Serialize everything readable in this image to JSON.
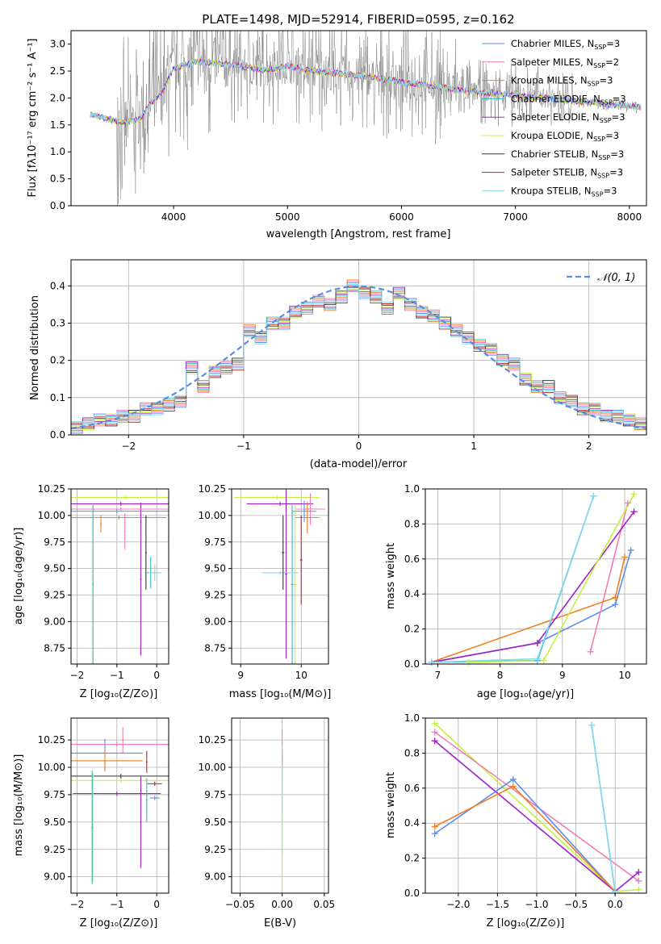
{
  "colors": {
    "chabrier_miles": "#5b8def",
    "salpeter_miles": "#f07db8",
    "kroupa_miles": "#f07f22",
    "chabrier_elodie": "#2db6c4",
    "salpeter_elodie": "#a020c8",
    "kroupa_elodie": "#c4f040",
    "chabrier_stelib": "#333333",
    "salpeter_stelib": "#c81e1e",
    "kroupa_stelib": "#8ad8f0",
    "data_gray": "#808080",
    "normal_curve": "#5b8dd8",
    "grid": "#b0b0b0"
  },
  "chart_data": [
    {
      "id": "spectrum",
      "type": "line",
      "title": "PLATE=1498, MJD=52914, FIBERID=0595, z=0.162",
      "xlabel": "wavelength [Angstrom, rest frame]",
      "ylabel": "Flux [fλ10⁻¹⁷ erg cm⁻² s⁻¹ A⁻¹]",
      "xlim": [
        3100,
        8150
      ],
      "ylim": [
        0,
        3.25
      ],
      "xticks": [
        "4000",
        "5000",
        "6000",
        "7000",
        "8000"
      ],
      "yticks": [
        "0.0",
        "0.5",
        "1.0",
        "1.5",
        "2.0",
        "2.5",
        "3.0"
      ],
      "grid": false,
      "legend_position": "top-right",
      "legend": [
        {
          "label": "Chabrier MILES, N",
          "sub": "SSP",
          "eq": "=3",
          "color_key": "chabrier_miles"
        },
        {
          "label": "Salpeter MILES, N",
          "sub": "SSP",
          "eq": "=2",
          "color_key": "salpeter_miles"
        },
        {
          "label": "Kroupa MILES, N",
          "sub": "SSP",
          "eq": "=3",
          "color_key": "kroupa_miles"
        },
        {
          "label": "Chabrier ELODIE, N",
          "sub": "SSP",
          "eq": "=3",
          "color_key": "chabrier_elodie"
        },
        {
          "label": "Salpeter ELODIE, N",
          "sub": "SSP",
          "eq": "=3",
          "color_key": "salpeter_elodie"
        },
        {
          "label": "Kroupa ELODIE, N",
          "sub": "SSP",
          "eq": "=3",
          "color_key": "kroupa_elodie"
        },
        {
          "label": "Chabrier STELIB, N",
          "sub": "SSP",
          "eq": "=3",
          "color_key": "chabrier_stelib"
        },
        {
          "label": "Salpeter STELIB, N",
          "sub": "SSP",
          "eq": "=3",
          "color_key": "salpeter_stelib"
        },
        {
          "label": "Kroupa STELIB, N",
          "sub": "SSP",
          "eq": "=3",
          "color_key": "kroupa_stelib"
        }
      ],
      "continuum": [
        [
          3270,
          1.7
        ],
        [
          3400,
          1.62
        ],
        [
          3550,
          1.55
        ],
        [
          3700,
          1.6
        ],
        [
          3800,
          1.9
        ],
        [
          3900,
          2.12
        ],
        [
          4000,
          2.55
        ],
        [
          4200,
          2.68
        ],
        [
          4500,
          2.62
        ],
        [
          4800,
          2.52
        ],
        [
          5000,
          2.6
        ],
        [
          5200,
          2.5
        ],
        [
          5500,
          2.45
        ],
        [
          6000,
          2.3
        ],
        [
          6500,
          2.15
        ],
        [
          7000,
          2.05
        ],
        [
          7500,
          1.95
        ],
        [
          8000,
          1.85
        ],
        [
          8100,
          1.83
        ]
      ]
    },
    {
      "id": "residuals",
      "type": "line",
      "xlabel": "(data-model)/error",
      "ylabel": "Normed distribution",
      "xlim": [
        -2.5,
        2.5
      ],
      "ylim": [
        0,
        0.47
      ],
      "xticks": [
        "−2",
        "−1",
        "0",
        "1",
        "2"
      ],
      "yticks": [
        "0.0",
        "0.1",
        "0.2",
        "0.3",
        "0.4"
      ],
      "grid": true,
      "legend": [
        {
          "label": "𝒩(0, 1)",
          "color_key": "normal_curve"
        }
      ],
      "legend_position": "top-right",
      "hist_x": [
        -2.5,
        -2.4,
        -2.3,
        -2.2,
        -2.1,
        -2.0,
        -1.9,
        -1.8,
        -1.7,
        -1.6,
        -1.5,
        -1.4,
        -1.3,
        -1.2,
        -1.1,
        -1.0,
        -0.9,
        -0.8,
        -0.7,
        -0.6,
        -0.5,
        -0.4,
        -0.3,
        -0.2,
        -0.1,
        0.0,
        0.1,
        0.2,
        0.3,
        0.4,
        0.5,
        0.6,
        0.7,
        0.8,
        0.9,
        1.0,
        1.1,
        1.2,
        1.3,
        1.4,
        1.5,
        1.6,
        1.7,
        1.8,
        1.9,
        2.0,
        2.1,
        2.2,
        2.3,
        2.4
      ],
      "hist_density": [
        0.02,
        0.03,
        0.04,
        0.04,
        0.05,
        0.05,
        0.07,
        0.07,
        0.08,
        0.09,
        0.18,
        0.13,
        0.17,
        0.18,
        0.19,
        0.28,
        0.26,
        0.3,
        0.3,
        0.33,
        0.34,
        0.36,
        0.35,
        0.37,
        0.4,
        0.38,
        0.37,
        0.34,
        0.38,
        0.35,
        0.33,
        0.32,
        0.3,
        0.28,
        0.26,
        0.24,
        0.23,
        0.2,
        0.19,
        0.15,
        0.13,
        0.13,
        0.1,
        0.09,
        0.07,
        0.07,
        0.05,
        0.05,
        0.04,
        0.03
      ],
      "normal_curve": {
        "mu": 0,
        "sigma": 1,
        "style": "dashed"
      }
    },
    {
      "id": "age_vs_Z",
      "type": "scatter",
      "xlabel": "Z [log₁₀(Z/Z⊙)]",
      "ylabel": "age  [log₁₀(age/yr)]",
      "xlim": [
        -2.15,
        0.3
      ],
      "ylim": [
        8.6,
        10.25
      ],
      "xticks": [
        "−2",
        "−1",
        "0"
      ],
      "yticks": [
        "8.75",
        "9.00",
        "9.25",
        "9.50",
        "9.75",
        "10.00",
        "10.25"
      ],
      "grid": true,
      "points": [
        {
          "c": "kroupa_elodie",
          "x": -0.8,
          "xe": 1.7,
          "y": 10.17,
          "ye": 0.02
        },
        {
          "c": "salpeter_elodie",
          "x": -0.9,
          "xe": 1.6,
          "y": 10.11,
          "ye": 0.02
        },
        {
          "c": "salpeter_elodie",
          "x": -0.4,
          "xe": 0.02,
          "y": 9.4,
          "ye": 0.72
        },
        {
          "c": "salpeter_miles",
          "x": -0.9,
          "xe": 1.5,
          "y": 10.06,
          "ye": 0.02
        },
        {
          "c": "chabrier_miles",
          "x": -1.0,
          "xe": 1.3,
          "y": 10.04,
          "ye": 0.02
        },
        {
          "c": "kroupa_miles",
          "x": -0.95,
          "xe": 1.2,
          "y": 9.98,
          "ye": 0.02
        },
        {
          "c": "kroupa_miles",
          "x": -1.4,
          "xe": 0.02,
          "y": 9.92,
          "ye": 0.08
        },
        {
          "c": "salpeter_miles",
          "x": -0.8,
          "xe": 0.02,
          "y": 9.85,
          "ye": 0.17
        },
        {
          "c": "kroupa_elodie",
          "x": -1.6,
          "xe": 0.02,
          "y": 9.35,
          "ye": 0.75
        },
        {
          "c": "chabrier_elodie",
          "x": -1.6,
          "xe": 0.02,
          "y": 9.35,
          "ye": 0.75
        },
        {
          "c": "chabrier_stelib",
          "x": -0.27,
          "xe": 0.02,
          "y": 9.65,
          "ye": 0.35
        },
        {
          "c": "chabrier_elodie",
          "x": -0.15,
          "xe": 0.15,
          "y": 9.46,
          "ye": 0.15
        },
        {
          "c": "kroupa_stelib",
          "x": -0.05,
          "xe": 0.17,
          "y": 9.46,
          "ye": 0.08
        }
      ]
    },
    {
      "id": "age_vs_mass",
      "type": "scatter",
      "xlabel": "mass [log₁₀(M/M⊙)]",
      "ylabel": "",
      "xlim": [
        8.85,
        10.45
      ],
      "ylim": [
        8.6,
        10.25
      ],
      "xticks": [
        "9",
        "10"
      ],
      "yticks": [
        "8.75",
        "9.00",
        "9.25",
        "9.50",
        "9.75",
        "10.00",
        "10.25"
      ],
      "grid": true,
      "points": [
        {
          "c": "kroupa_elodie",
          "x": 9.6,
          "xe": 0.7,
          "y": 10.17,
          "ye": 0.02
        },
        {
          "c": "salpeter_elodie",
          "x": 9.65,
          "xe": 0.55,
          "y": 10.11,
          "ye": 0.02
        },
        {
          "c": "salpeter_miles",
          "x": 10.15,
          "xe": 0.25,
          "y": 10.06,
          "ye": 0.15
        },
        {
          "c": "chabrier_miles",
          "x": 10.05,
          "xe": 0.2,
          "y": 10.04,
          "ye": 0.1
        },
        {
          "c": "kroupa_miles",
          "x": 10.1,
          "xe": 0.2,
          "y": 9.98,
          "ye": 0.15
        },
        {
          "c": "salpeter_elodie",
          "x": 9.75,
          "xe": 0.02,
          "y": 9.45,
          "ye": 0.8
        },
        {
          "c": "kroupa_elodie",
          "x": 9.9,
          "xe": 0.02,
          "y": 9.35,
          "ye": 0.75
        },
        {
          "c": "chabrier_elodie",
          "x": 9.85,
          "xe": 0.02,
          "y": 9.35,
          "ye": 0.75
        },
        {
          "c": "kroupa_stelib",
          "x": 9.65,
          "xe": 0.3,
          "y": 9.46,
          "ye": 0.02
        },
        {
          "c": "chabrier_stelib",
          "x": 9.7,
          "xe": 0.02,
          "y": 9.65,
          "ye": 0.35
        },
        {
          "c": "salpeter_stelib",
          "x": 10.0,
          "xe": 0.02,
          "y": 9.58,
          "ye": 0.42
        }
      ]
    },
    {
      "id": "weight_vs_age",
      "type": "line",
      "xlabel": "age  [log₁₀(age/yr)]",
      "ylabel": "mass weight",
      "xlim": [
        6.8,
        10.35
      ],
      "ylim": [
        0,
        1.0
      ],
      "xticks": [
        "7",
        "8",
        "9",
        "10"
      ],
      "yticks": [
        "0.0",
        "0.2",
        "0.4",
        "0.6",
        "0.8",
        "1.0"
      ],
      "grid": true,
      "series": [
        {
          "c": "chabrier_miles",
          "pts": [
            [
              6.9,
              0.01
            ],
            [
              8.6,
              0.12
            ],
            [
              9.85,
              0.34
            ],
            [
              10.1,
              0.65
            ]
          ]
        },
        {
          "c": "salpeter_miles",
          "pts": [
            [
              9.45,
              0.07
            ],
            [
              10.05,
              0.92
            ]
          ]
        },
        {
          "c": "kroupa_miles",
          "pts": [
            [
              6.9,
              0.01
            ],
            [
              9.85,
              0.38
            ],
            [
              10.0,
              0.61
            ]
          ]
        },
        {
          "c": "chabrier_elodie",
          "pts": [
            [
              6.9,
              0.01
            ],
            [
              8.6,
              0.02
            ],
            [
              9.5,
              0.96
            ]
          ]
        },
        {
          "c": "salpeter_elodie",
          "pts": [
            [
              6.9,
              0.01
            ],
            [
              8.6,
              0.12
            ],
            [
              10.15,
              0.87
            ]
          ]
        },
        {
          "c": "kroupa_elodie",
          "pts": [
            [
              7.5,
              0.01
            ],
            [
              8.7,
              0.02
            ],
            [
              10.15,
              0.97
            ]
          ]
        },
        {
          "c": "kroupa_stelib",
          "pts": [
            [
              6.9,
              0.01
            ],
            [
              8.6,
              0.03
            ],
            [
              9.5,
              0.96
            ]
          ]
        }
      ]
    },
    {
      "id": "mass_vs_Z",
      "type": "scatter",
      "xlabel": "Z [log₁₀(Z/Z⊙)]",
      "ylabel": "mass [log₁₀(M/M⊙)]",
      "xlim": [
        -2.15,
        0.3
      ],
      "ylim": [
        8.85,
        10.45
      ],
      "xticks": [
        "−2",
        "−1",
        "0"
      ],
      "yticks": [
        "9.00",
        "9.25",
        "9.50",
        "9.75",
        "10.00",
        "10.25"
      ],
      "grid": true,
      "points": [
        {
          "c": "salpeter_miles",
          "x": -1.0,
          "xe": 1.3,
          "y": 10.21,
          "ye": 0.02
        },
        {
          "c": "salpeter_miles",
          "x": -0.85,
          "xe": 0.02,
          "y": 10.25,
          "ye": 0.12
        },
        {
          "c": "chabrier_miles",
          "x": -1.3,
          "xe": 0.95,
          "y": 10.13,
          "ye": 0.13
        },
        {
          "c": "kroupa_miles",
          "x": -1.3,
          "xe": 0.95,
          "y": 10.06,
          "ye": 0.1
        },
        {
          "c": "kroupa_elodie",
          "x": -0.9,
          "xe": 1.25,
          "y": 9.88,
          "ye": 0.02
        },
        {
          "c": "chabrier_stelib",
          "x": -0.9,
          "xe": 1.35,
          "y": 9.92,
          "ye": 0.02
        },
        {
          "c": "salpeter_elodie",
          "x": -1.0,
          "xe": 1.1,
          "y": 9.76,
          "ye": 0.02
        },
        {
          "c": "salpeter_elodie",
          "x": -0.4,
          "xe": 0.02,
          "y": 9.5,
          "ye": 0.42
        },
        {
          "c": "kroupa_elodie",
          "x": -1.6,
          "xe": 0.02,
          "y": 9.45,
          "ye": 0.5
        },
        {
          "c": "chabrier_elodie",
          "x": -1.62,
          "xe": 0.02,
          "y": 9.45,
          "ye": 0.52
        },
        {
          "c": "salpeter_stelib",
          "x": -0.05,
          "xe": 0.18,
          "y": 9.85,
          "ye": 0.02
        },
        {
          "c": "salpeter_stelib",
          "x": -0.25,
          "xe": 0.02,
          "y": 10.05,
          "ye": 0.1
        },
        {
          "c": "chabrier_miles",
          "x": -0.05,
          "xe": 0.12,
          "y": 9.72,
          "ye": 0.02
        },
        {
          "c": "chabrier_elodie",
          "x": -0.25,
          "xe": 0.02,
          "y": 9.7,
          "ye": 0.2
        }
      ]
    },
    {
      "id": "mass_vs_ebv",
      "type": "scatter",
      "xlabel": "E(B-V)",
      "ylabel": "",
      "xlim": [
        -0.06,
        0.055
      ],
      "ylim": [
        8.85,
        10.45
      ],
      "xticks": [
        "−0.05",
        "0.00",
        "0.05"
      ],
      "yticks": [
        "9.00",
        "9.25",
        "9.50",
        "9.75",
        "10.00",
        "10.25"
      ],
      "grid": true,
      "points": [
        {
          "c": "salpeter_miles",
          "x": 0.0,
          "xe": 0.0,
          "y": 10.2,
          "ye": 0.15
        },
        {
          "c": "salpeter_stelib",
          "x": 0.0,
          "xe": 0.0,
          "y": 10.08,
          "ye": 0.07
        },
        {
          "c": "chabrier_elodie",
          "x": 0.0,
          "xe": 0.0,
          "y": 9.6,
          "ye": 0.4
        },
        {
          "c": "kroupa_elodie",
          "x": 0.0,
          "xe": 0.0,
          "y": 9.4,
          "ye": 0.5
        },
        {
          "c": "kroupa_stelib",
          "x": 0.0,
          "xe": 0.0,
          "y": 9.9,
          "ye": 0.3
        }
      ]
    },
    {
      "id": "weight_vs_Z",
      "type": "line",
      "xlabel": "Z [log₁₀(Z/Z⊙)]",
      "ylabel": "mass weight",
      "xlim": [
        -2.42,
        0.4
      ],
      "ylim": [
        0,
        1.0
      ],
      "xticks": [
        "−2.0",
        "−1.5",
        "−1.0",
        "−0.5",
        "0.0"
      ],
      "yticks": [
        "0.0",
        "0.2",
        "0.4",
        "0.6",
        "0.8",
        "1.0"
      ],
      "grid": true,
      "series": [
        {
          "c": "kroupa_elodie",
          "pts": [
            [
              -2.3,
              0.97
            ],
            [
              0.0,
              0.01
            ],
            [
              0.3,
              0.02
            ]
          ]
        },
        {
          "c": "salpeter_miles",
          "pts": [
            [
              -2.3,
              0.92
            ],
            [
              0.3,
              0.07
            ]
          ]
        },
        {
          "c": "salpeter_elodie",
          "pts": [
            [
              -2.3,
              0.87
            ],
            [
              0.0,
              0.01
            ],
            [
              0.3,
              0.12
            ]
          ]
        },
        {
          "c": "chabrier_miles",
          "pts": [
            [
              -2.3,
              0.34
            ],
            [
              -1.3,
              0.65
            ],
            [
              0.0,
              0.01
            ]
          ]
        },
        {
          "c": "kroupa_miles",
          "pts": [
            [
              -2.3,
              0.38
            ],
            [
              -1.3,
              0.61
            ],
            [
              0.0,
              0.01
            ]
          ]
        },
        {
          "c": "chabrier_elodie",
          "pts": [
            [
              -0.3,
              0.96
            ],
            [
              0.0,
              0.01
            ]
          ]
        },
        {
          "c": "kroupa_stelib",
          "pts": [
            [
              -0.3,
              0.96
            ],
            [
              0.0,
              0.01
            ]
          ]
        }
      ]
    }
  ]
}
